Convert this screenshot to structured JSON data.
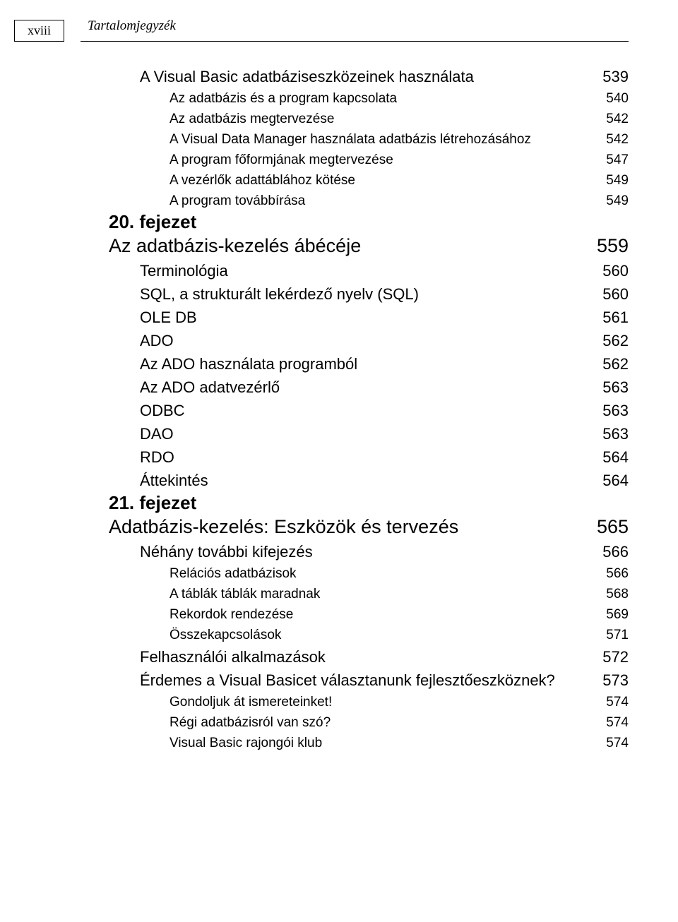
{
  "header": {
    "page_number": "xviii",
    "running_head": "Tartalomjegyzék"
  },
  "toc": [
    {
      "level": 2,
      "title": "A Visual Basic adatbáziseszközeinek használata",
      "page": "539"
    },
    {
      "level": 3,
      "title": "Az adatbázis és a program kapcsolata",
      "page": "540"
    },
    {
      "level": 3,
      "title": "Az adatbázis megtervezése",
      "page": "542"
    },
    {
      "level": 3,
      "title": "A Visual Data Manager használata adatbázis létrehozásához",
      "page": "542"
    },
    {
      "level": 3,
      "title": "A program főformjának megtervezése",
      "page": "547"
    },
    {
      "level": 3,
      "title": "A vezérlők adattáblához kötése",
      "page": "549"
    },
    {
      "level": 3,
      "title": "A program továbbírása",
      "page": "549"
    },
    {
      "level": 1,
      "title": "20. fejezet",
      "page": "",
      "chapter": true
    },
    {
      "level": 1,
      "title": "Az adatbázis-kezelés ábécéje",
      "page": "559"
    },
    {
      "level": 2,
      "title": "Terminológia",
      "page": "560"
    },
    {
      "level": 2,
      "title": "SQL, a strukturált lekérdező nyelv (SQL)",
      "page": "560"
    },
    {
      "level": 2,
      "title": "OLE DB",
      "page": "561"
    },
    {
      "level": 2,
      "title": "ADO",
      "page": "562"
    },
    {
      "level": 2,
      "title": "Az ADO használata programból",
      "page": "562"
    },
    {
      "level": 2,
      "title": "Az ADO adatvezérlő",
      "page": "563"
    },
    {
      "level": 2,
      "title": "ODBC",
      "page": "563"
    },
    {
      "level": 2,
      "title": "DAO",
      "page": "563"
    },
    {
      "level": 2,
      "title": "RDO",
      "page": "564"
    },
    {
      "level": 2,
      "title": "Áttekintés",
      "page": "564"
    },
    {
      "level": 1,
      "title": "21. fejezet",
      "page": "",
      "chapter": true
    },
    {
      "level": 1,
      "title": "Adatbázis-kezelés: Eszközök és tervezés",
      "page": "565"
    },
    {
      "level": 2,
      "title": "Néhány további kifejezés",
      "page": "566"
    },
    {
      "level": 3,
      "title": "Relációs adatbázisok",
      "page": "566"
    },
    {
      "level": 3,
      "title": "A táblák táblák maradnak",
      "page": "568"
    },
    {
      "level": 3,
      "title": "Rekordok rendezése",
      "page": "569"
    },
    {
      "level": 3,
      "title": "Összekapcsolások",
      "page": "571"
    },
    {
      "level": 2,
      "title": "Felhasználói alkalmazások",
      "page": "572"
    },
    {
      "level": 2,
      "title": "Érdemes a Visual Basicet választanunk fejlesztőeszköznek?",
      "page": "573"
    },
    {
      "level": 3,
      "title": "Gondoljuk át ismereteinket!",
      "page": "574"
    },
    {
      "level": 3,
      "title": "Régi adatbázisról van szó?",
      "page": "574"
    },
    {
      "level": 3,
      "title": "Visual Basic rajongói klub",
      "page": "574"
    }
  ]
}
